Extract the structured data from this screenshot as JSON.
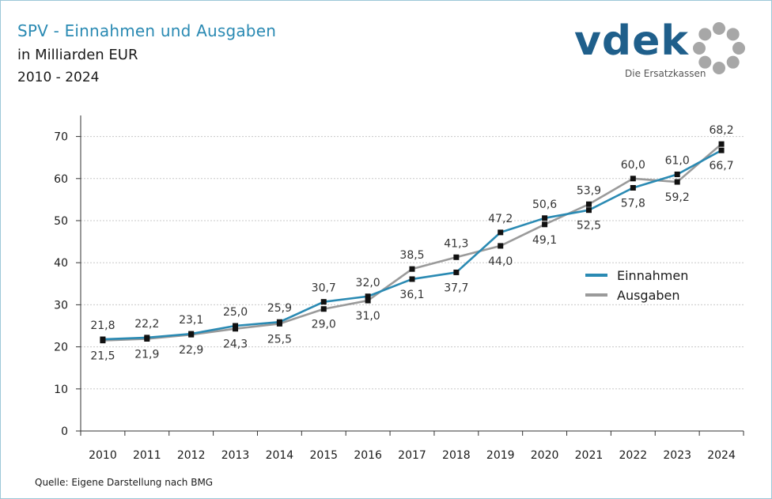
{
  "header": {
    "title": "SPV - Einnahmen und Ausgaben",
    "subtitle": "in Milliarden EUR",
    "period": "2010 - 2024"
  },
  "logo": {
    "text": "vdek",
    "tagline": "Die Ersatzkassen",
    "color": "#1f5f8b"
  },
  "footer": {
    "source": "Quelle: Eigene Darstellung nach BMG"
  },
  "chart_data": {
    "type": "line",
    "title": "SPV - Einnahmen und Ausgaben",
    "xlabel": "",
    "ylabel": "",
    "ylim": [
      0,
      75
    ],
    "yticks": [
      0,
      10,
      20,
      30,
      40,
      50,
      60,
      70
    ],
    "grid": true,
    "legend": "right",
    "categories": [
      "2010",
      "2011",
      "2012",
      "2013",
      "2014",
      "2015",
      "2016",
      "2017",
      "2018",
      "2019",
      "2020",
      "2021",
      "2022",
      "2023",
      "2024"
    ],
    "series": [
      {
        "name": "Einnahmen",
        "color": "#2a8ab3",
        "values": [
          21.8,
          22.2,
          23.1,
          25.0,
          25.9,
          30.7,
          32.0,
          36.1,
          37.7,
          47.2,
          50.6,
          52.5,
          57.8,
          61.0,
          66.7
        ],
        "labels": [
          "21,8",
          "22,2",
          "23,1",
          "25,0",
          "25,9",
          "30,7",
          "32,0",
          "36,1",
          "37,7",
          "47,2",
          "50,6",
          "52,5",
          "57,8",
          "61,0",
          "66,7"
        ],
        "label_pos": [
          "above",
          "above",
          "above",
          "above",
          "above",
          "above",
          "above",
          "below",
          "below",
          "above",
          "above",
          "below",
          "below",
          "above",
          "below"
        ]
      },
      {
        "name": "Ausgaben",
        "color": "#9a9a9a",
        "values": [
          21.5,
          21.9,
          22.9,
          24.3,
          25.5,
          29.0,
          31.0,
          38.5,
          41.3,
          44.0,
          49.1,
          53.9,
          60.0,
          59.2,
          68.2
        ],
        "labels": [
          "21,5",
          "21,9",
          "22,9",
          "24,3",
          "25,5",
          "29,0",
          "31,0",
          "38,5",
          "41,3",
          "44,0",
          "49,1",
          "53,9",
          "60,0",
          "59,2",
          "68,2"
        ],
        "label_pos": [
          "below",
          "below",
          "below",
          "below",
          "below",
          "below",
          "below",
          "above",
          "above",
          "below",
          "below",
          "above",
          "above",
          "below",
          "above"
        ]
      }
    ]
  }
}
